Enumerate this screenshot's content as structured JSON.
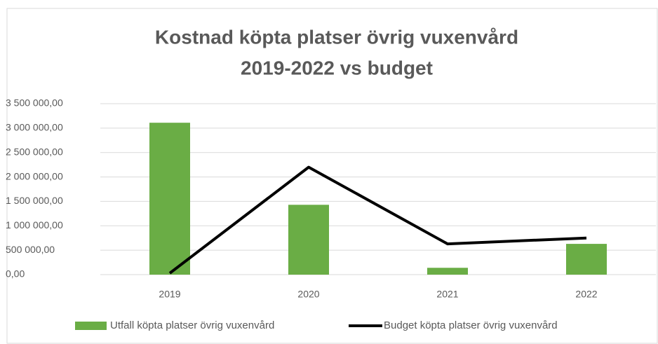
{
  "chart_data": {
    "type": "bar_line",
    "title": [
      "Kostnad köpta platser övrig vuxenvård",
      "2019-2022 vs budget"
    ],
    "categories": [
      "2019",
      "2020",
      "2021",
      "2022"
    ],
    "series": [
      {
        "name": "Utfall köpta platser övrig vuxenvård",
        "type": "bar",
        "color": "#6aad45",
        "values": [
          3110000,
          1430000,
          140000,
          630000
        ]
      },
      {
        "name": "Budget köpta platser övrig vuxenvård",
        "type": "line",
        "color": "#000000",
        "values": [
          30000,
          2200000,
          630000,
          750000
        ]
      }
    ],
    "ylim": [
      0,
      3500000
    ],
    "yticks": [
      {
        "value": 0,
        "label": "0,00"
      },
      {
        "value": 500000,
        "label": "500 000,00"
      },
      {
        "value": 1000000,
        "label": "1 000 000,00"
      },
      {
        "value": 1500000,
        "label": "1 500 000,00"
      },
      {
        "value": 2000000,
        "label": "2 000 000,00"
      },
      {
        "value": 2500000,
        "label": "2 500 000,00"
      },
      {
        "value": 3000000,
        "label": "3 000 000,00"
      },
      {
        "value": 3500000,
        "label": "3 500 000,00"
      }
    ],
    "grid": true,
    "legend": "bottom"
  }
}
